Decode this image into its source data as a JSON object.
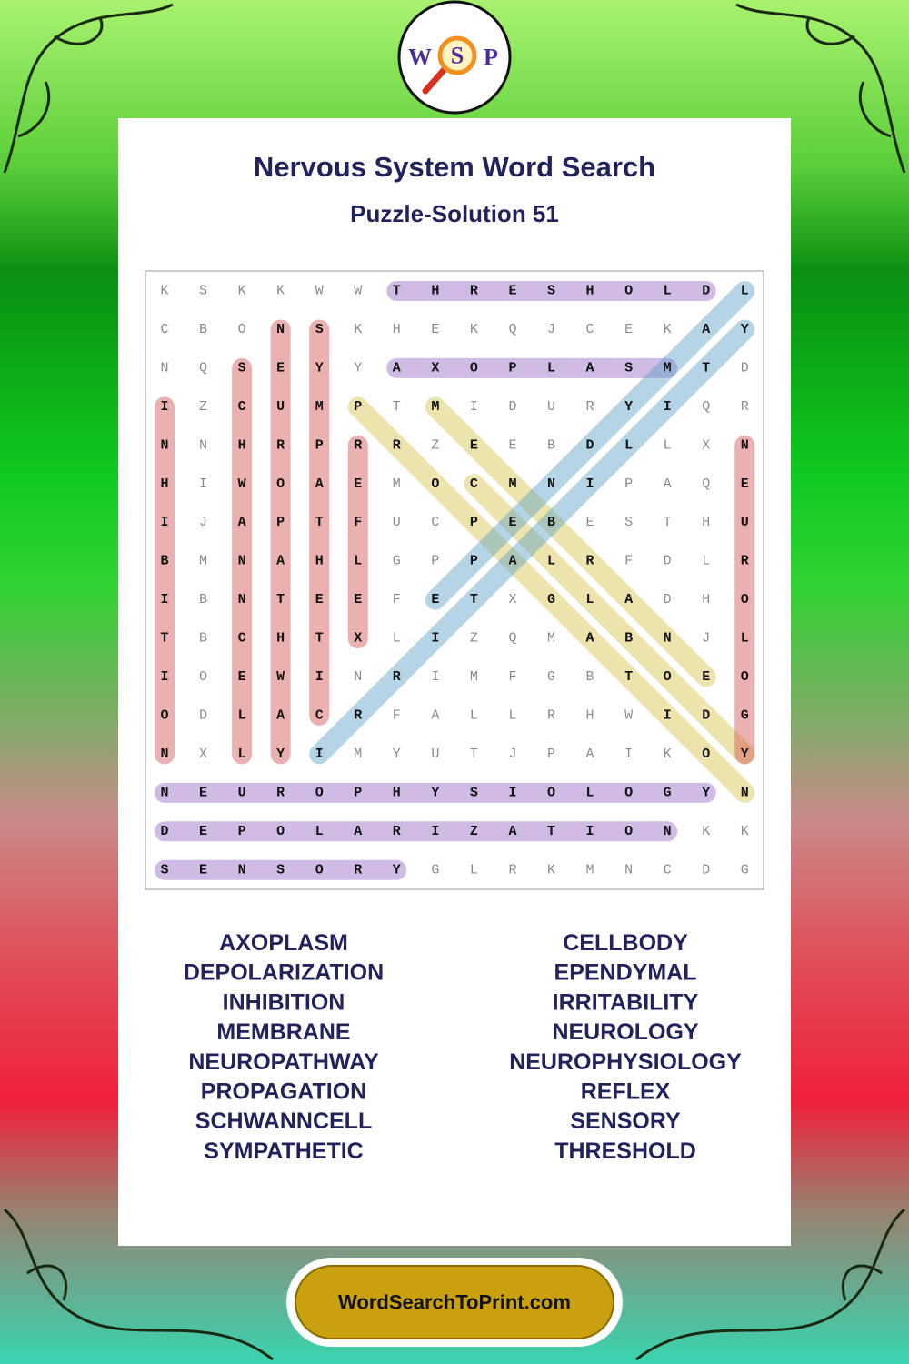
{
  "logo": {
    "letters": [
      "W",
      "S",
      "P"
    ]
  },
  "header": {
    "title": "Nervous System Word Search",
    "subtitle": "Puzzle-Solution 51"
  },
  "grid": {
    "rows": [
      [
        "K",
        "S",
        "K",
        "K",
        "W",
        "W",
        "T",
        "H",
        "R",
        "E",
        "S",
        "H",
        "O",
        "L",
        "D",
        "L"
      ],
      [
        "C",
        "B",
        "O",
        "N",
        "S",
        "K",
        "H",
        "E",
        "K",
        "Q",
        "J",
        "C",
        "E",
        "K",
        "A",
        "Y"
      ],
      [
        "N",
        "Q",
        "S",
        "E",
        "Y",
        "Y",
        "A",
        "X",
        "O",
        "P",
        "L",
        "A",
        "S",
        "M",
        "T",
        "D"
      ],
      [
        "I",
        "Z",
        "C",
        "U",
        "M",
        "P",
        "T",
        "M",
        "I",
        "D",
        "U",
        "R",
        "Y",
        "I",
        "Q",
        "R"
      ],
      [
        "N",
        "N",
        "H",
        "R",
        "P",
        "R",
        "R",
        "Z",
        "E",
        "E",
        "B",
        "D",
        "L",
        "L",
        "X",
        "N"
      ],
      [
        "H",
        "I",
        "W",
        "O",
        "A",
        "E",
        "M",
        "O",
        "C",
        "M",
        "N",
        "I",
        "P",
        "A",
        "Q",
        "E"
      ],
      [
        "I",
        "J",
        "A",
        "P",
        "T",
        "F",
        "U",
        "C",
        "P",
        "E",
        "B",
        "E",
        "S",
        "T",
        "H",
        "U"
      ],
      [
        "B",
        "M",
        "N",
        "A",
        "H",
        "L",
        "G",
        "P",
        "P",
        "A",
        "L",
        "R",
        "F",
        "D",
        "L",
        "R"
      ],
      [
        "I",
        "B",
        "N",
        "T",
        "E",
        "E",
        "F",
        "E",
        "T",
        "X",
        "G",
        "L",
        "A",
        "D",
        "H",
        "O"
      ],
      [
        "T",
        "B",
        "C",
        "H",
        "T",
        "X",
        "L",
        "I",
        "Z",
        "Q",
        "M",
        "A",
        "B",
        "N",
        "J",
        "L"
      ],
      [
        "I",
        "O",
        "E",
        "W",
        "I",
        "N",
        "R",
        "I",
        "M",
        "F",
        "G",
        "B",
        "T",
        "O",
        "E",
        "O"
      ],
      [
        "O",
        "D",
        "L",
        "A",
        "C",
        "R",
        "F",
        "A",
        "L",
        "L",
        "R",
        "H",
        "W",
        "I",
        "D",
        "G"
      ],
      [
        "N",
        "X",
        "L",
        "Y",
        "I",
        "M",
        "Y",
        "U",
        "T",
        "J",
        "P",
        "A",
        "I",
        "K",
        "O",
        "Y"
      ],
      [
        "N",
        "E",
        "U",
        "R",
        "O",
        "P",
        "H",
        "Y",
        "S",
        "I",
        "O",
        "L",
        "O",
        "G",
        "Y",
        "N"
      ],
      [
        "D",
        "E",
        "P",
        "O",
        "L",
        "A",
        "R",
        "I",
        "Z",
        "A",
        "T",
        "I",
        "O",
        "N",
        "K",
        "K"
      ],
      [
        "S",
        "E",
        "N",
        "S",
        "O",
        "R",
        "Y",
        "G",
        "L",
        "R",
        "K",
        "M",
        "N",
        "C",
        "D",
        "G"
      ]
    ]
  },
  "word_list": {
    "left": [
      "AXOPLASM",
      "DEPOLARIZATION",
      "INHIBITION",
      "MEMBRANE",
      "NEUROPATHWAY",
      "PROPAGATION",
      "SCHWANNCELL",
      "SYMPATHETIC"
    ],
    "right": [
      "CELLBODY",
      "EPENDYMAL",
      "IRRITABILITY",
      "NEUROLOGY",
      "NEUROPHYSIOLOGY",
      "REFLEX",
      "SENSORY",
      "THRESHOLD"
    ]
  },
  "footer": {
    "site": "WordSearchToPrint.com"
  }
}
